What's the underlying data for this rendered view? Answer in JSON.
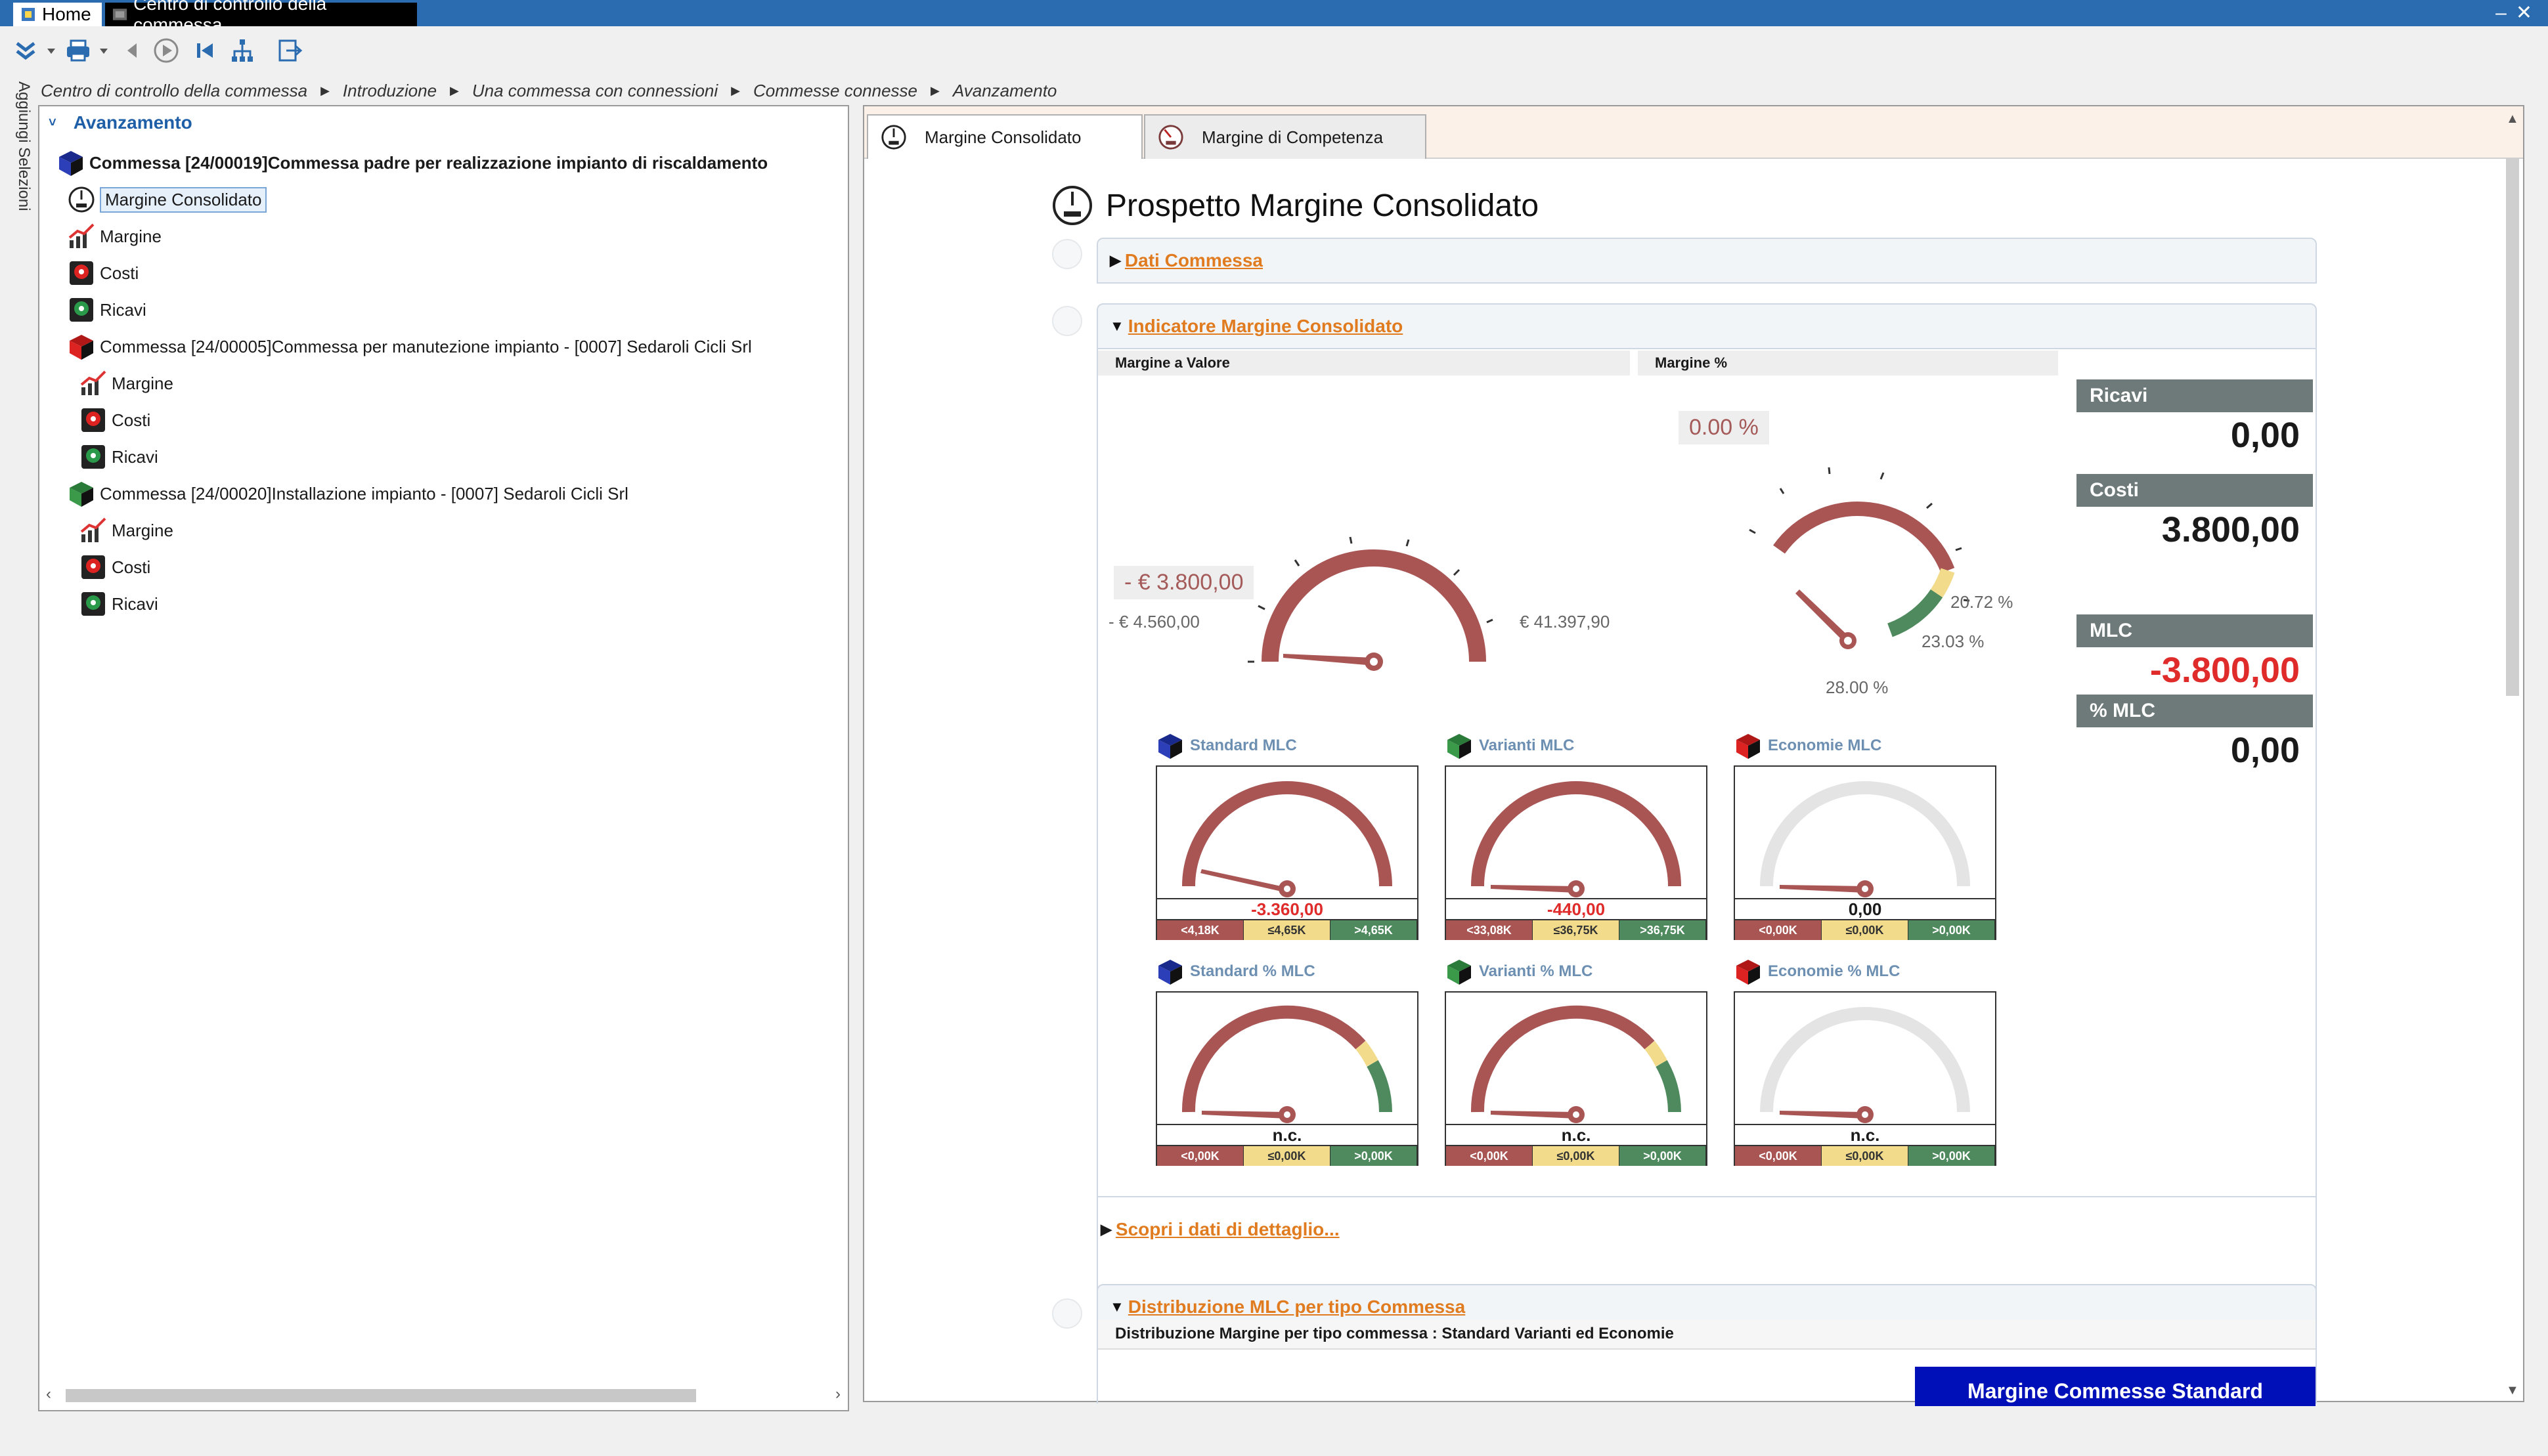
{
  "top_tabs": [
    "Home",
    "Centro di controllo della commessa"
  ],
  "breadcrumb": [
    "Centro di controllo della commessa",
    "Introduzione",
    "Una commessa con connessioni",
    "Commesse connesse",
    "Avanzamento"
  ],
  "side_label": "Aggiungi Selezioni",
  "tree": {
    "header": "Avanzamento",
    "nodes": [
      "Commessa [24/00019]Commessa padre per realizzazione impianto di riscaldamento",
      "Margine Consolidato",
      "Margine",
      "Costi",
      "Ricavi",
      "Commessa [24/00005]Commessa per manutezione impianto - [0007] Sedaroli Cicli Srl",
      "Margine",
      "Costi",
      "Ricavi",
      "Commessa [24/00020]Installazione impianto - [0007] Sedaroli Cicli Srl",
      "Margine",
      "Costi",
      "Ricavi"
    ]
  },
  "doc_tabs": [
    "Margine Consolidato",
    "Margine di Competenza"
  ],
  "report": {
    "title": "Prospetto Margine Consolidato",
    "sections": {
      "dati": "Dati Commessa",
      "indicatore": "Indicatore Margine Consolidato",
      "scopri": "Scopri i dati di dettaglio...",
      "distribuzione": "Distribuzione MLC per tipo Commessa"
    },
    "col_heads": {
      "valore": "Margine a Valore",
      "perc": "Margine %"
    },
    "gauge_valore": {
      "value_label": "- € 3.800,00",
      "min_label": "- € 4.560,00",
      "max_label": "€ 41.397,90"
    },
    "gauge_perc": {
      "value_label": "0.00 %",
      "t1": "20.72 %",
      "t2": "23.03 %",
      "max": "28.00 %"
    },
    "kpi": [
      {
        "label": "Ricavi",
        "value": "0,00"
      },
      {
        "label": "Costi",
        "value": "3.800,00"
      },
      {
        "label": "MLC",
        "value": "-3.800,00"
      },
      {
        "label": "% MLC",
        "value": "0,00"
      }
    ],
    "mini_gauges": [
      {
        "title": "Standard MLC",
        "value": "-3.360,00",
        "ranges": [
          "<4,18K",
          "≤4,65K",
          ">4,65K"
        ]
      },
      {
        "title": "Varianti MLC",
        "value": "-440,00",
        "ranges": [
          "<33,08K",
          "≤36,75K",
          ">36,75K"
        ]
      },
      {
        "title": "Economie MLC",
        "value": "0,00",
        "ranges": [
          "<0,00K",
          "≤0,00K",
          ">0,00K"
        ]
      },
      {
        "title": "Standard % MLC",
        "value": "n.c.",
        "ranges": [
          "<0,00K",
          "≤0,00K",
          ">0,00K"
        ]
      },
      {
        "title": "Varianti % MLC",
        "value": "n.c.",
        "ranges": [
          "<0,00K",
          "≤0,00K",
          ">0,00K"
        ]
      },
      {
        "title": "Economie % MLC",
        "value": "n.c.",
        "ranges": [
          "<0,00K",
          "≤0,00K",
          ">0,00K"
        ]
      }
    ],
    "dist_subtitle": "Distribuzione Margine per tipo commessa : Standard Varianti ed Economie",
    "dist_banner": "Margine Commesse Standard"
  },
  "colors": {
    "accent": "#2b6cb0",
    "link": "#e07b20",
    "gauge_red": "#a85554",
    "gauge_yellow": "#f2dc8c",
    "gauge_green": "#4f8a5e",
    "kpi_header": "#6d7a79",
    "negative": "#e02b2b"
  },
  "icons": [
    "home-icon",
    "app-icon",
    "expand-icon",
    "print-icon",
    "back-icon",
    "play-icon",
    "first-icon",
    "tree-icon",
    "exit-icon",
    "cube-icon",
    "gauge-icon",
    "chart-icon",
    "cost-icon",
    "revenue-icon"
  ]
}
